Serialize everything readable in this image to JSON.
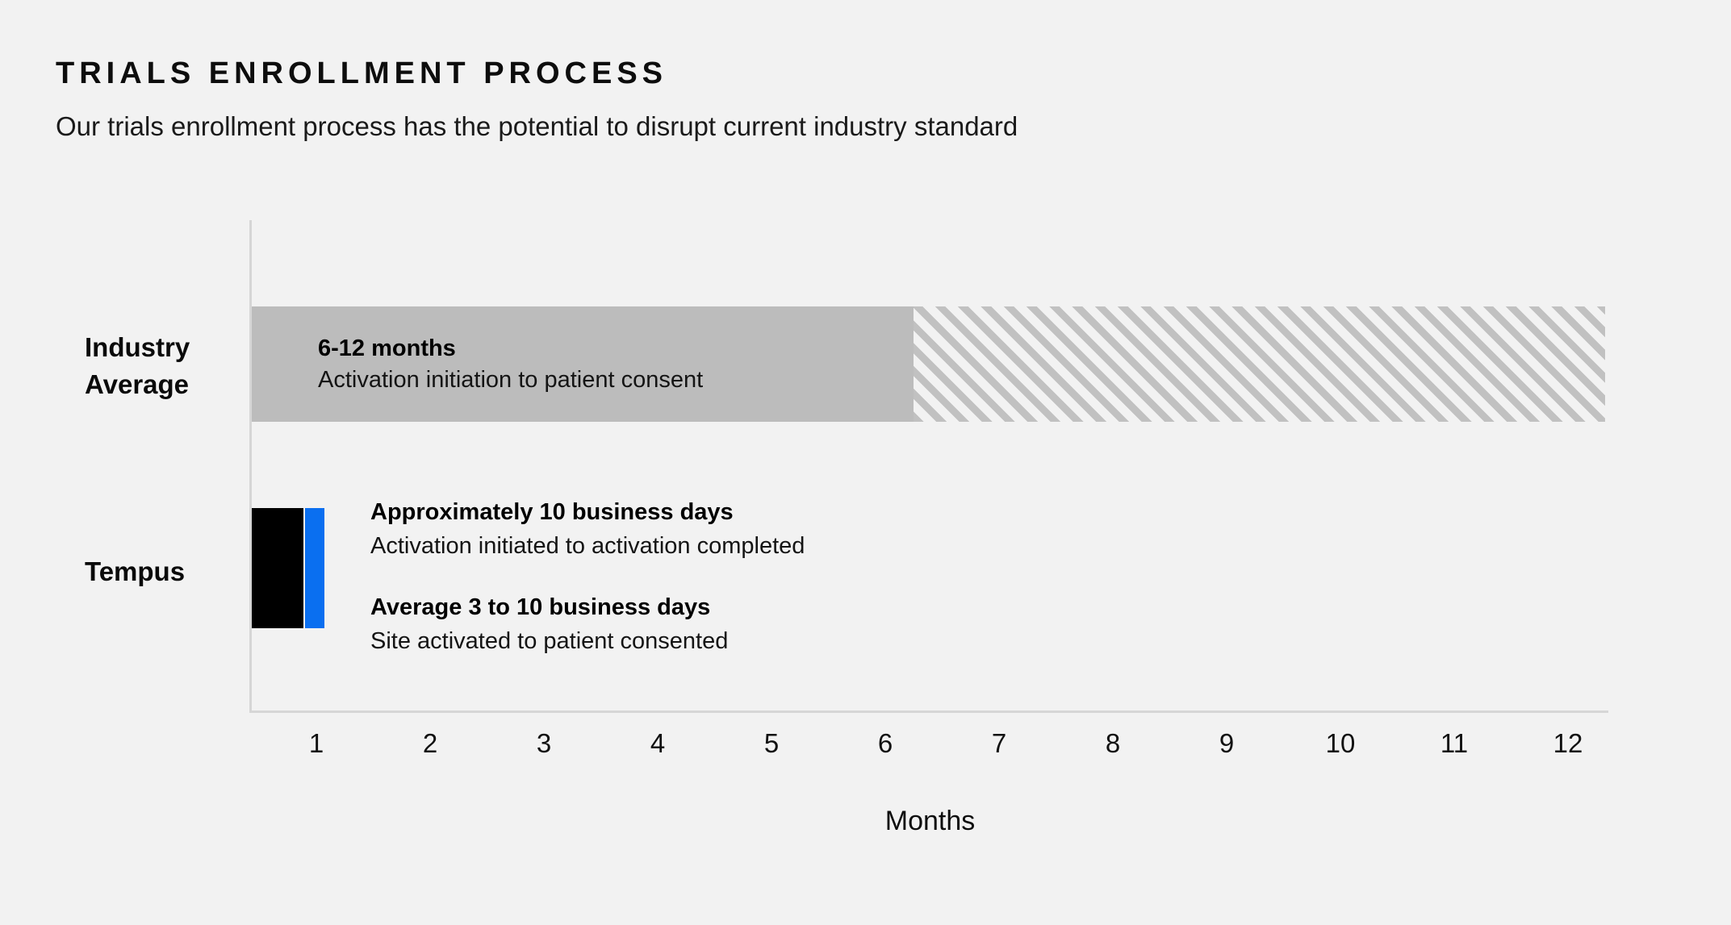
{
  "page": {
    "title": "TRIALS ENROLLMENT PROCESS",
    "subtitle": "Our trials enrollment process has the potential to disrupt current industry standard"
  },
  "colors": {
    "background": "#f2f2f2",
    "axis_line": "#d6d6d6",
    "industry_bar_gray": "#bcbcbc",
    "hatch_stripe_gray": "#c1c1c1",
    "tempus_black": "#000000",
    "tempus_blue": "#0a6ff0",
    "text": "#111111"
  },
  "chart_data": {
    "type": "bar",
    "orientation": "horizontal",
    "title": "TRIALS ENROLLMENT PROCESS",
    "categories": [
      "Industry Average",
      "Tempus"
    ],
    "xlabel": "Months",
    "x_ticks": [
      "1",
      "2",
      "3",
      "4",
      "5",
      "6",
      "7",
      "8",
      "9",
      "10",
      "11",
      "12"
    ],
    "xlim_est": [
      0.4,
      12.5
    ],
    "grid": false,
    "legend": "none",
    "bars": [
      {
        "category": "Industry Average",
        "label": "6-12 months",
        "description": "Activation initiation to patient consent",
        "value_range_months": [
          6,
          12
        ],
        "solid_extent_months_est": [
          0.4,
          6.3
        ],
        "hatched_extent_months_est": [
          6.3,
          12.5
        ],
        "style": "solid gray up to ~6 months, diagonal hatched stripes from ~6 to 12 months"
      },
      {
        "category": "Tempus",
        "segments": [
          {
            "label": "Approximately 10 business days",
            "description": "Activation initiated to activation completed",
            "color": "black",
            "extent_months_est": [
              0.4,
              0.9
            ]
          },
          {
            "label": "Average 3 to 10 business days",
            "description": "Site activated to patient consented",
            "color": "blue",
            "extent_months_est": [
              0.9,
              1.07
            ]
          }
        ]
      }
    ]
  }
}
